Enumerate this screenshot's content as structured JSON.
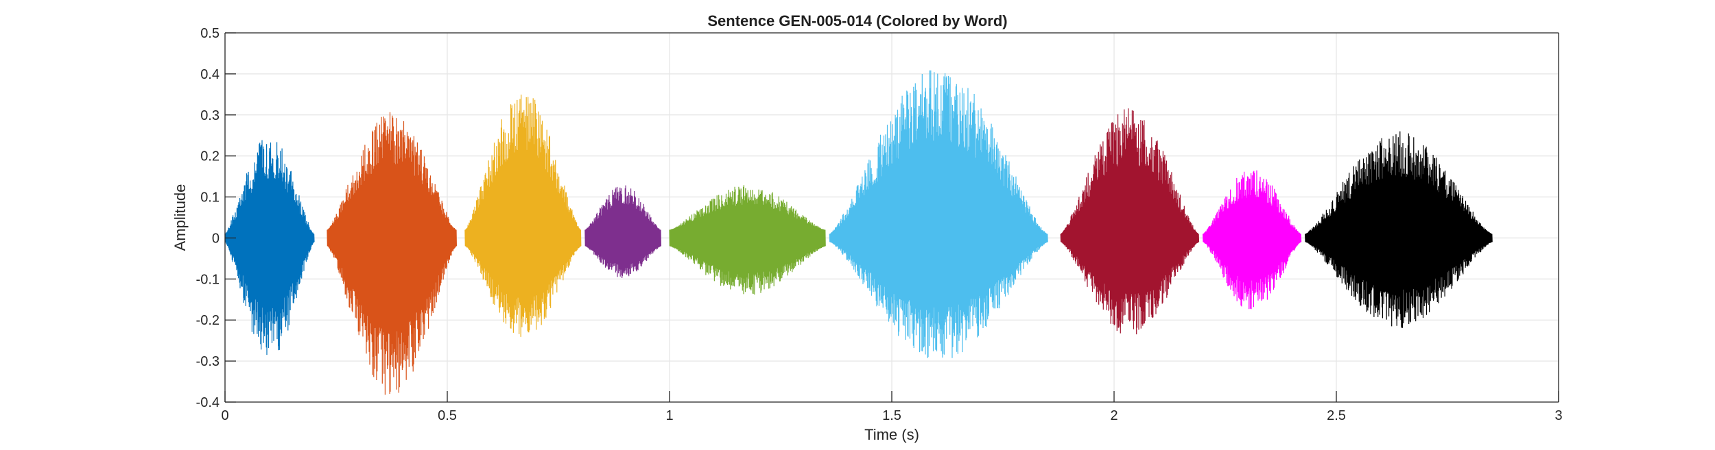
{
  "chart_data": {
    "type": "line",
    "title": "Sentence GEN-005-014 (Colored by Word)",
    "xlabel": "Time (s)",
    "ylabel": "Amplitude",
    "xlim": [
      0,
      3
    ],
    "ylim": [
      -0.4,
      0.5
    ],
    "xticks": [
      0,
      0.5,
      1,
      1.5,
      2,
      2.5,
      3
    ],
    "xtick_labels": [
      "0",
      "0.5",
      "1",
      "1.5",
      "2",
      "2.5",
      "3"
    ],
    "yticks": [
      -0.4,
      -0.3,
      -0.2,
      -0.1,
      0,
      0.1,
      0.2,
      0.3,
      0.4,
      0.5
    ],
    "ytick_labels": [
      "-0.4",
      "-0.3",
      "-0.2",
      "-0.1",
      "0",
      "0.1",
      "0.2",
      "0.3",
      "0.4",
      "0.5"
    ],
    "grid": true,
    "series": [
      {
        "color": "#0072BD",
        "segments": [
          {
            "x": [
              0.0,
              0.2
            ],
            "env_max": [
              0.01,
              0.25
            ],
            "env_min": [
              -0.01,
              -0.3
            ]
          }
        ]
      },
      {
        "color": "#D95319",
        "segments": [
          {
            "x": [
              0.23,
              0.52
            ],
            "env_max": [
              0.02,
              0.31
            ],
            "env_min": [
              -0.02,
              -0.39
            ]
          }
        ]
      },
      {
        "color": "#EDB120",
        "segments": [
          {
            "x": [
              0.54,
              0.8
            ],
            "env_max": [
              0.02,
              0.36
            ],
            "env_min": [
              -0.02,
              -0.25
            ]
          }
        ]
      },
      {
        "color": "#7E2F8E",
        "segments": [
          {
            "x": [
              0.81,
              0.98
            ],
            "env_max": [
              0.02,
              0.13
            ],
            "env_min": [
              -0.02,
              -0.1
            ]
          }
        ]
      },
      {
        "color": "#77AC30",
        "segments": [
          {
            "x": [
              1.0,
              1.35
            ],
            "env_max": [
              0.02,
              0.13
            ],
            "env_min": [
              -0.02,
              -0.14
            ]
          }
        ]
      },
      {
        "color": "#4DBEEE",
        "segments": [
          {
            "x": [
              1.36,
              1.85
            ],
            "env_max": [
              0.01,
              0.42
            ],
            "env_min": [
              -0.01,
              -0.3
            ]
          }
        ]
      },
      {
        "color": "#A2142F",
        "segments": [
          {
            "x": [
              1.88,
              2.19
            ],
            "env_max": [
              0.01,
              0.32
            ],
            "env_min": [
              -0.01,
              -0.24
            ]
          }
        ]
      },
      {
        "color": "#FF00FF",
        "segments": [
          {
            "x": [
              2.2,
              2.42
            ],
            "env_max": [
              0.01,
              0.17
            ],
            "env_min": [
              -0.01,
              -0.18
            ]
          }
        ]
      },
      {
        "color": "#000000",
        "segments": [
          {
            "x": [
              2.43,
              2.85
            ],
            "env_max": [
              0.01,
              0.26
            ],
            "env_min": [
              -0.01,
              -0.22
            ]
          }
        ]
      }
    ]
  }
}
